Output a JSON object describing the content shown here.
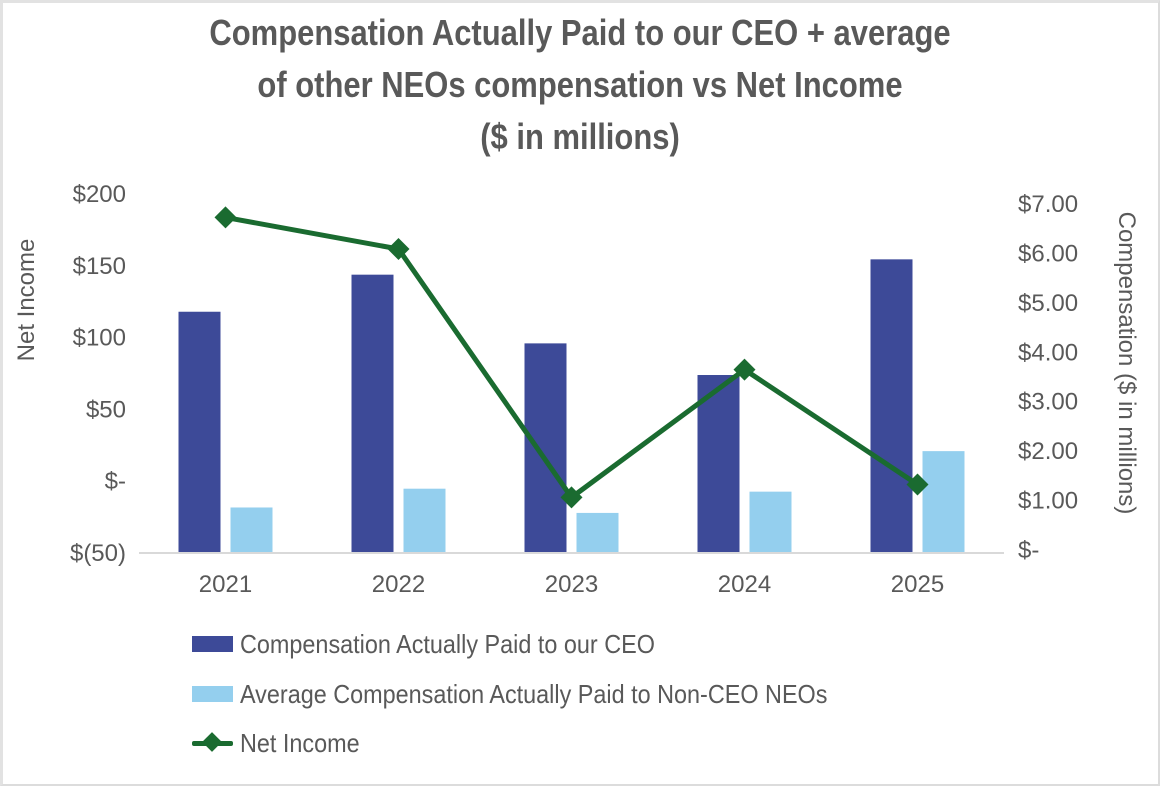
{
  "chart_data": {
    "type": "bar+line",
    "title_lines": [
      "Compensation Actually Paid to our CEO + average",
      "of other NEOs compensation vs Net Income",
      "($ in millions)"
    ],
    "categories": [
      "2021",
      "2022",
      "2023",
      "2024",
      "2025"
    ],
    "series": [
      {
        "name": "Compensation Actually Paid to our CEO",
        "type": "bar",
        "axis": "right",
        "color": "#3d4a98",
        "values": [
          4.8,
          5.55,
          4.16,
          3.52,
          5.86
        ]
      },
      {
        "name": "Average Compensation Actually Paid to Non-CEO NEOs",
        "type": "bar",
        "axis": "right",
        "color": "#94cfee",
        "values": [
          0.84,
          1.22,
          0.73,
          1.16,
          1.98
        ]
      },
      {
        "name": "Net Income",
        "type": "line",
        "marker": "diamond",
        "axis": "left",
        "color": "#1a6b30",
        "values": [
          183,
          161,
          -12,
          77,
          -3
        ]
      }
    ],
    "left_axis": {
      "label": "Net Income",
      "range": [
        -50,
        200
      ],
      "ticks": [
        200,
        150,
        100,
        50,
        0,
        -50
      ],
      "tick_labels": [
        "$200",
        "$150",
        "$100",
        "$50",
        "$-",
        "$(50)"
      ]
    },
    "right_axis": {
      "label": "Compensation ($ in millions)",
      "range": [
        0,
        7
      ],
      "ticks": [
        7,
        6,
        5,
        4,
        3,
        2,
        1,
        0
      ],
      "tick_labels": [
        "$7.00",
        "$6.00",
        "$5.00",
        "$4.00",
        "$3.00",
        "$2.00",
        "$1.00",
        "$-"
      ]
    },
    "xlabel": "",
    "grid": false,
    "legend_position": "bottom"
  }
}
